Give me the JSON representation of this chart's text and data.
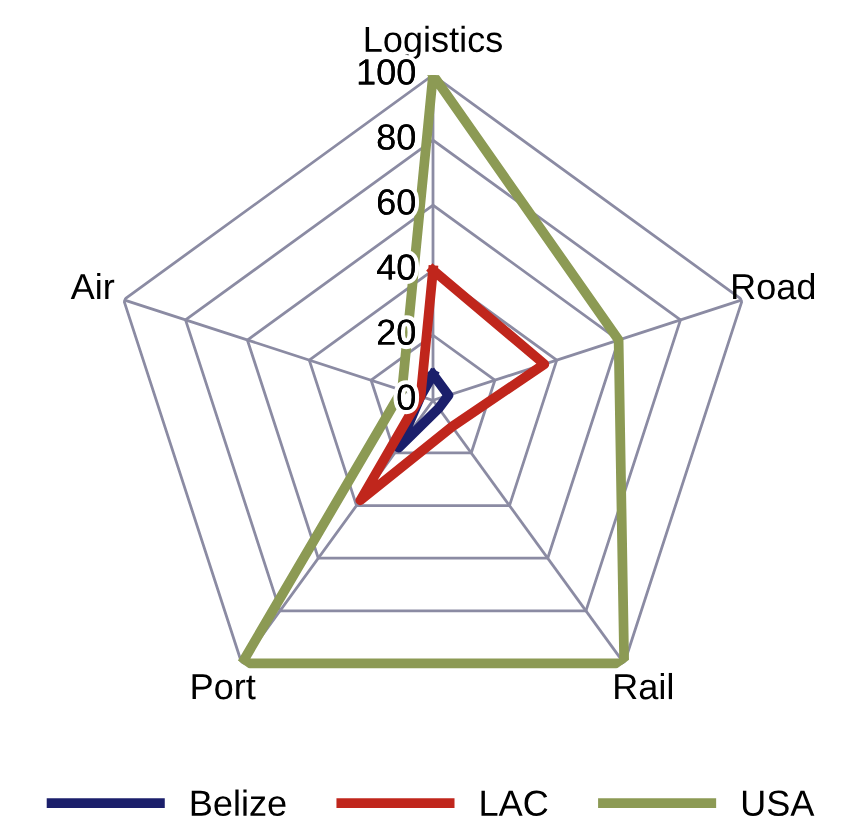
{
  "chart_data": {
    "type": "radar",
    "categories": [
      "Logistics",
      "Road",
      "Rail",
      "Port",
      "Air"
    ],
    "ylim": [
      0,
      100
    ],
    "yticks": [
      0,
      20,
      40,
      60,
      80,
      100
    ],
    "grid": true,
    "legend": "bottom",
    "series": [
      {
        "name": "Belize",
        "color": "#1b1f6b",
        "values": [
          8,
          5,
          3,
          18,
          4
        ]
      },
      {
        "name": "LAC",
        "color": "#c0261c",
        "values": [
          40,
          36,
          10,
          38,
          4
        ]
      },
      {
        "name": "USA",
        "color": "#8c9a54",
        "values": [
          100,
          60,
          100,
          100,
          10
        ]
      }
    ]
  }
}
